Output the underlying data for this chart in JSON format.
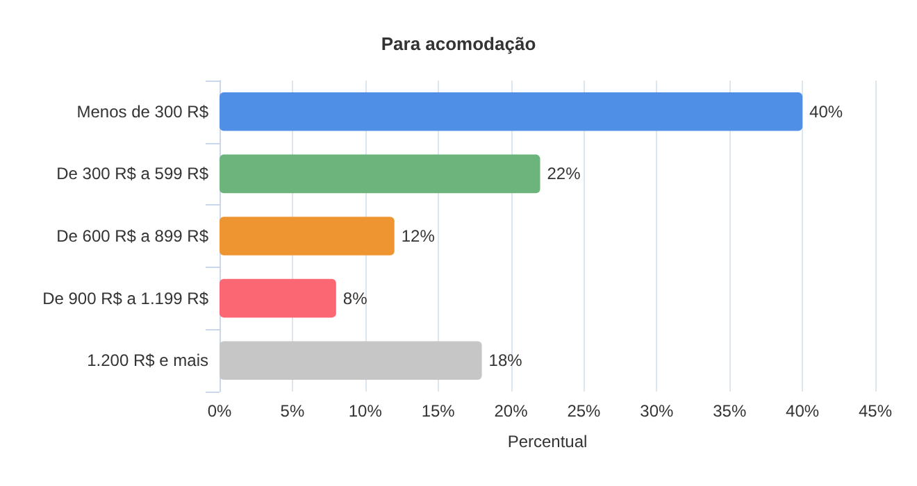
{
  "chart_data": {
    "type": "bar",
    "orientation": "horizontal",
    "title": "Para acomodação",
    "xlabel": "Percentual",
    "categories": [
      "Menos de 300 R$",
      "De 300 R$ a 599 R$",
      "De 600 R$ a 899 R$",
      "De 900 R$ a 1.199 R$",
      "1.200 R$ e mais"
    ],
    "values": [
      40,
      22,
      12,
      8,
      18
    ],
    "value_labels": [
      "40%",
      "22%",
      "12%",
      "8%",
      "18%"
    ],
    "colors": [
      "#4f8fe6",
      "#6db37c",
      "#ee9430",
      "#fb6874",
      "#c6c6c6"
    ],
    "xlim": [
      0,
      45
    ],
    "xticks": [
      {
        "value": 0,
        "label": "0%"
      },
      {
        "value": 5,
        "label": "5%"
      },
      {
        "value": 10,
        "label": "10%"
      },
      {
        "value": 15,
        "label": "15%"
      },
      {
        "value": 20,
        "label": "20%"
      },
      {
        "value": 25,
        "label": "25%"
      },
      {
        "value": 30,
        "label": "30%"
      },
      {
        "value": 35,
        "label": "35%"
      },
      {
        "value": 40,
        "label": "40%"
      },
      {
        "value": 45,
        "label": "45%"
      }
    ],
    "grid": "x"
  }
}
